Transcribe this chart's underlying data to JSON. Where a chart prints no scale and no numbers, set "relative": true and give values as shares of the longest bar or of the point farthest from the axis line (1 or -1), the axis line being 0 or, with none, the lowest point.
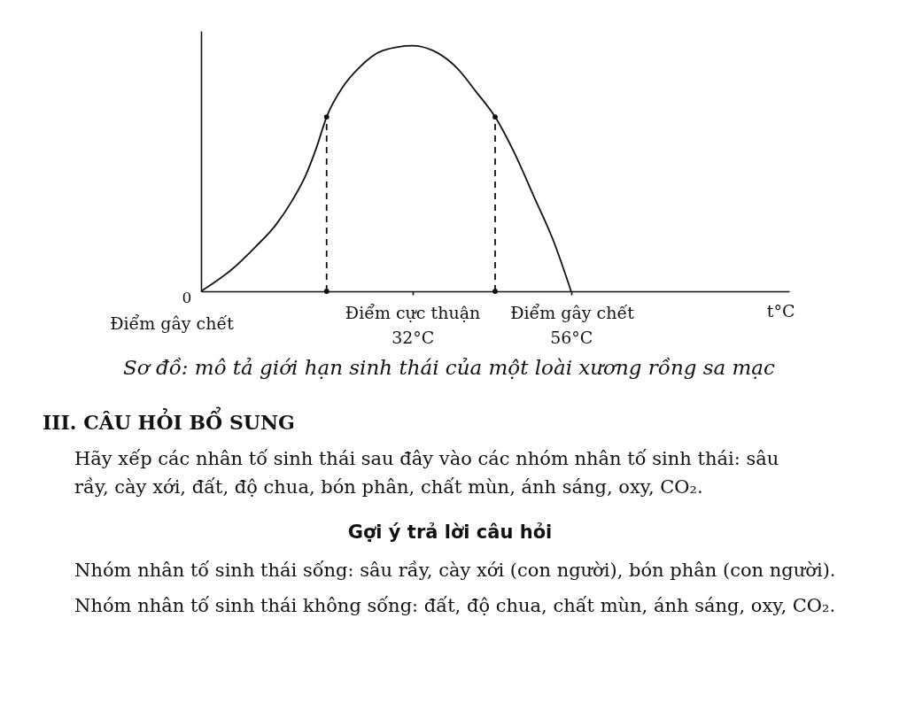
{
  "chart_data": {
    "type": "line",
    "relative": true,
    "xlabel": "t°C",
    "xlim": [
      0,
      89
    ],
    "xticks": [
      {
        "value": 32,
        "label": "32°C"
      },
      {
        "value": 56,
        "label": "56°C"
      }
    ],
    "series": [
      {
        "color": "#111111",
        "x": [
          0,
          4.7,
          8.2,
          11.3,
          13.8,
          15.8,
          17.4,
          19,
          21.4,
          23.9,
          27.5,
          32,
          35.1,
          38.7,
          41.7,
          44.5,
          47.3,
          50.3,
          53.4,
          56
        ],
        "values": [
          0,
          0.09,
          0.18,
          0.27,
          0.37,
          0.47,
          0.58,
          0.71,
          0.83,
          0.91,
          0.98,
          1,
          0.98,
          0.91,
          0.81,
          0.71,
          0.57,
          0.39,
          0.2,
          0
        ]
      },
      {
        "type": "line",
        "line_style": "dashed",
        "marker": "circle",
        "color": "#111111",
        "x": [
          19,
          19
        ],
        "values": [
          0,
          0.71
        ]
      },
      {
        "type": "line",
        "line_style": "dashed",
        "marker": "circle",
        "color": "#111111",
        "x": [
          44.5,
          44.5
        ],
        "values": [
          0,
          0.71
        ]
      }
    ],
    "grid": false,
    "annotations": [
      "0",
      "Điểm gây chết",
      "Điểm cực thuận",
      "Điểm gây chết",
      "Sơ đồ: mô tả giới hạn sinh thái của một loài xương rồng sa mạc",
      "III. CÂU HỎI BỔ SUNG",
      "Hãy xếp các nhân tố sinh thái sau đây vào các nhóm nhân tố sinh thái: sâu rầy, cày xới, đất, độ chua, bón phân, chất mùn, ánh sáng, oxy, CO₂.",
      "Gợi ý trả lời câu hỏi",
      "Nhóm nhân tố sinh thái sống: sâu rầy, cày xới (con người), bón phân (con người).",
      "Nhóm nhân tố sinh thái không sống: đất, độ chua, chất mùn, ánh sáng, oxy, CO₂."
    ]
  }
}
